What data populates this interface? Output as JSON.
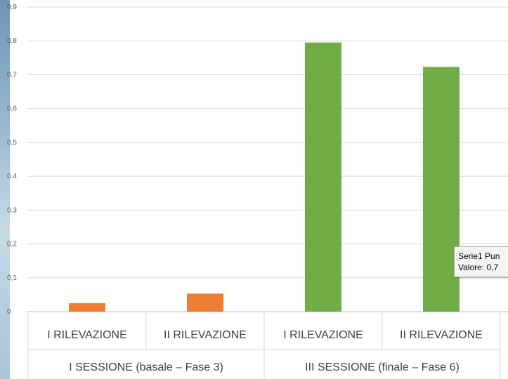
{
  "chart_data": {
    "type": "bar",
    "title": "",
    "xlabel": "",
    "ylabel": "",
    "ylim": [
      0,
      0.9
    ],
    "yticks": [
      "0",
      "0,1",
      "0,2",
      "0,3",
      "0,4",
      "0,5",
      "0,6",
      "0,7",
      "0,8",
      "0,9"
    ],
    "grid": true,
    "categories": [
      "I RILEVAZIONE",
      "II RILEVAZIONE",
      "I RILEVAZIONE",
      "II RILEVAZIONE"
    ],
    "groups": [
      "I SESSIONE (basale – Fase 3)",
      "III SESSIONE (finale – Fase 6)"
    ],
    "values": [
      0.025,
      0.053,
      0.795,
      0.723
    ],
    "bar_colors": [
      "#ed7d31",
      "#ed7d31",
      "#70ad47",
      "#70ad47"
    ]
  },
  "tooltip": {
    "line1": "Serie1 Pun",
    "line2": "Valore: 0,7"
  }
}
